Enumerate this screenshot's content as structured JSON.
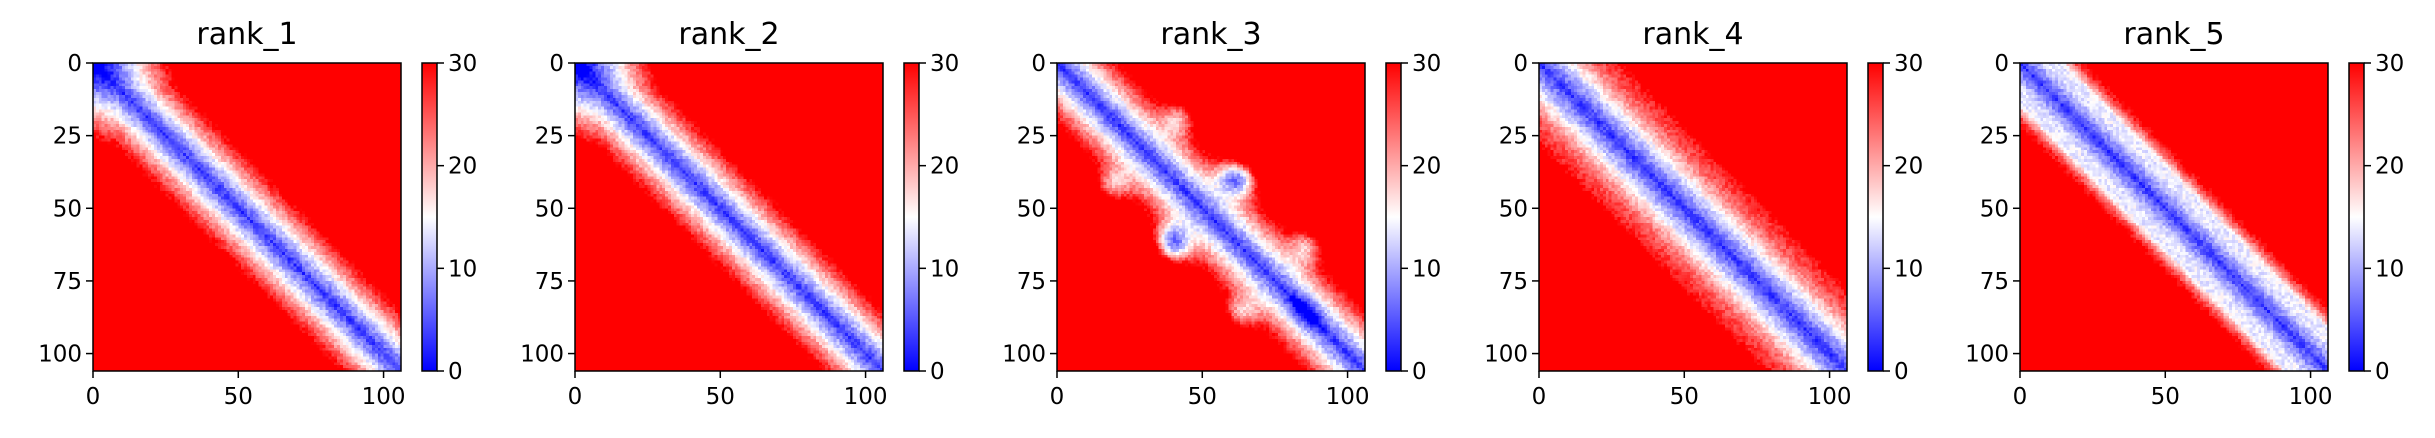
{
  "chart_data": [
    {
      "type": "heatmap",
      "title": "rank_1",
      "variant": "plain",
      "grid_size": 106,
      "xlim": [
        0,
        106
      ],
      "ylim": [
        106,
        0
      ],
      "x_ticks": [
        0,
        50,
        100
      ],
      "y_ticks": [
        0,
        25,
        50,
        75,
        100
      ],
      "colorbar": {
        "ticks": [
          0,
          10,
          20,
          30
        ],
        "range": [
          0,
          30
        ],
        "colormap": "bwr",
        "colors": [
          "#0000ff",
          "#ffffff",
          "#ff0000"
        ]
      },
      "grid": false
    },
    {
      "type": "heatmap",
      "title": "rank_2",
      "variant": "plain",
      "grid_size": 106,
      "xlim": [
        0,
        106
      ],
      "ylim": [
        106,
        0
      ],
      "x_ticks": [
        0,
        50,
        100
      ],
      "y_ticks": [
        0,
        25,
        50,
        75,
        100
      ],
      "colorbar": {
        "ticks": [
          0,
          10,
          20,
          30
        ],
        "range": [
          0,
          30
        ],
        "colormap": "bwr",
        "colors": [
          "#0000ff",
          "#ffffff",
          "#ff0000"
        ]
      },
      "grid": false
    },
    {
      "type": "heatmap",
      "title": "rank_3",
      "variant": "blobs",
      "grid_size": 106,
      "xlim": [
        0,
        106
      ],
      "ylim": [
        106,
        0
      ],
      "x_ticks": [
        0,
        50,
        100
      ],
      "y_ticks": [
        0,
        25,
        50,
        75,
        100
      ],
      "colorbar": {
        "ticks": [
          0,
          10,
          20,
          30
        ],
        "range": [
          0,
          30
        ],
        "colormap": "bwr",
        "colors": [
          "#0000ff",
          "#ffffff",
          "#ff0000"
        ]
      },
      "grid": false
    },
    {
      "type": "heatmap",
      "title": "rank_4",
      "variant": "pale",
      "grid_size": 106,
      "xlim": [
        0,
        106
      ],
      "ylim": [
        106,
        0
      ],
      "x_ticks": [
        0,
        50,
        100
      ],
      "y_ticks": [
        0,
        25,
        50,
        75,
        100
      ],
      "colorbar": {
        "ticks": [
          0,
          10,
          20,
          30
        ],
        "range": [
          0,
          30
        ],
        "colormap": "bwr",
        "colors": [
          "#0000ff",
          "#ffffff",
          "#ff0000"
        ]
      },
      "grid": false
    },
    {
      "type": "heatmap",
      "title": "rank_5",
      "variant": "stripes",
      "grid_size": 106,
      "xlim": [
        0,
        106
      ],
      "ylim": [
        106,
        0
      ],
      "x_ticks": [
        0,
        50,
        100
      ],
      "y_ticks": [
        0,
        25,
        50,
        75,
        100
      ],
      "colorbar": {
        "ticks": [
          0,
          10,
          20,
          30
        ],
        "range": [
          0,
          30
        ],
        "colormap": "bwr",
        "colors": [
          "#0000ff",
          "#ffffff",
          "#ff0000"
        ]
      },
      "grid": false
    }
  ]
}
